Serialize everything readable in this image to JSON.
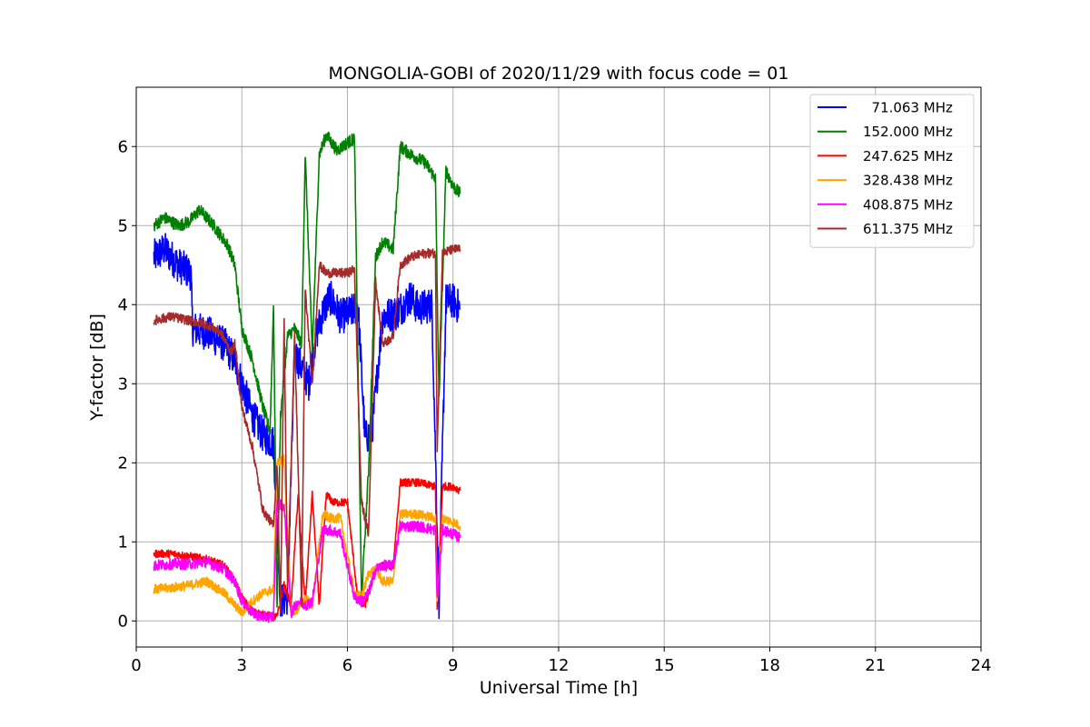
{
  "chart_data": {
    "type": "line",
    "title": "MONGOLIA-GOBI of 2020/11/29 with focus code = 01",
    "xlabel": "Universal Time [h]",
    "ylabel": "Y-factor [dB]",
    "xlim": [
      0,
      24
    ],
    "ylim": [
      -0.33,
      6.75
    ],
    "xticks": [
      0,
      3,
      6,
      9,
      12,
      15,
      18,
      21,
      24
    ],
    "yticks": [
      0,
      1,
      2,
      3,
      4,
      5,
      6
    ],
    "grid": true,
    "legend_position": "top-right",
    "series": [
      {
        "name": "  71.063 MHz",
        "color": "#0000ff",
        "noise": 0.45,
        "x": [
          0.5,
          0.8,
          1.2,
          1.55,
          1.6,
          2.0,
          2.5,
          2.8,
          3.0,
          3.3,
          3.6,
          3.9,
          4.1,
          4.3,
          4.5,
          4.7,
          4.9,
          5.1,
          5.3,
          5.5,
          5.8,
          6.1,
          6.3,
          6.5,
          6.7,
          7.0,
          7.4,
          7.8,
          8.0,
          8.4,
          8.6,
          8.8,
          9.0,
          9.2
        ],
        "y": [
          4.6,
          4.7,
          4.5,
          4.4,
          3.7,
          3.65,
          3.5,
          3.3,
          3.0,
          2.6,
          2.35,
          2.25,
          0.25,
          0.3,
          3.4,
          3.2,
          3.0,
          3.6,
          3.9,
          4.1,
          3.85,
          3.9,
          4.0,
          2.3,
          2.4,
          3.85,
          3.9,
          4.1,
          3.95,
          4.0,
          0.25,
          4.05,
          4.05,
          3.95
        ]
      },
      {
        "name": "152.000 MHz",
        "color": "#008000",
        "noise": 0.16,
        "x": [
          0.5,
          0.8,
          1.2,
          1.5,
          1.8,
          2.2,
          2.6,
          2.8,
          3.0,
          3.3,
          3.6,
          3.8,
          3.9,
          4.0,
          4.1,
          4.3,
          4.5,
          4.7,
          4.8,
          5.0,
          5.2,
          5.4,
          5.7,
          6.0,
          6.2,
          6.4,
          6.6,
          6.8,
          7.0,
          7.3,
          7.5,
          7.8,
          8.2,
          8.5,
          8.6,
          8.8,
          9.0,
          9.2
        ],
        "y": [
          5.0,
          5.1,
          5.0,
          5.05,
          5.2,
          5.0,
          4.75,
          4.5,
          3.7,
          3.3,
          2.7,
          2.4,
          4.0,
          0.2,
          2.6,
          3.6,
          3.7,
          3.5,
          5.9,
          3.4,
          5.9,
          6.15,
          5.95,
          6.05,
          6.1,
          0.3,
          1.9,
          4.6,
          4.8,
          4.7,
          6.0,
          5.9,
          5.8,
          5.6,
          2.8,
          5.7,
          5.5,
          5.4
        ]
      },
      {
        "name": "247.625 MHz",
        "color": "#ff0000",
        "noise": 0.1,
        "x": [
          0.5,
          1.0,
          1.5,
          2.0,
          2.5,
          2.8,
          3.0,
          3.3,
          3.6,
          4.0,
          4.2,
          4.4,
          4.6,
          4.8,
          5.0,
          5.2,
          5.4,
          5.6,
          6.0,
          6.3,
          6.5,
          6.8,
          7.0,
          7.3,
          7.5,
          8.0,
          8.5,
          8.55,
          8.7,
          9.0,
          9.2
        ],
        "y": [
          0.85,
          0.85,
          0.82,
          0.78,
          0.7,
          0.5,
          0.3,
          0.12,
          0.08,
          0.05,
          0.45,
          0.2,
          1.6,
          0.2,
          1.6,
          0.2,
          1.6,
          1.5,
          1.5,
          0.25,
          0.2,
          0.65,
          0.7,
          0.7,
          1.75,
          1.75,
          1.7,
          0.15,
          1.7,
          1.7,
          1.65
        ]
      },
      {
        "name": "328.438 MHz",
        "color": "#ffa500",
        "noise": 0.12,
        "x": [
          0.5,
          1.0,
          1.5,
          2.0,
          2.5,
          2.8,
          3.0,
          3.3,
          3.6,
          3.9,
          4.0,
          4.2,
          4.4,
          4.6,
          4.8,
          5.0,
          5.3,
          5.5,
          5.8,
          6.2,
          6.4,
          6.6,
          6.8,
          7.0,
          7.3,
          7.5,
          8.0,
          8.5,
          8.55,
          8.7,
          9.0,
          9.2
        ],
        "y": [
          0.4,
          0.42,
          0.45,
          0.5,
          0.35,
          0.2,
          0.1,
          0.25,
          0.35,
          0.4,
          2.0,
          2.05,
          0.1,
          0.15,
          0.3,
          0.2,
          1.35,
          1.3,
          1.3,
          0.35,
          0.3,
          0.6,
          0.65,
          0.5,
          0.5,
          1.35,
          1.35,
          1.3,
          0.2,
          1.3,
          1.25,
          1.2
        ]
      },
      {
        "name": "408.875 MHz",
        "color": "#ff00ff",
        "noise": 0.14,
        "x": [
          0.5,
          1.0,
          1.5,
          2.0,
          2.5,
          2.8,
          3.0,
          3.3,
          3.6,
          3.9,
          4.0,
          4.2,
          4.4,
          4.6,
          4.8,
          5.0,
          5.3,
          5.5,
          5.8,
          6.2,
          6.4,
          6.6,
          6.8,
          7.0,
          7.3,
          7.5,
          8.0,
          8.5,
          8.55,
          8.7,
          9.0,
          9.2
        ],
        "y": [
          0.7,
          0.72,
          0.72,
          0.75,
          0.65,
          0.5,
          0.25,
          0.1,
          0.05,
          0.05,
          1.5,
          1.45,
          0.1,
          0.25,
          0.2,
          0.25,
          1.15,
          1.15,
          1.1,
          0.3,
          0.25,
          0.35,
          0.65,
          0.7,
          0.7,
          1.2,
          1.2,
          1.15,
          0.25,
          1.15,
          1.1,
          1.05
        ]
      },
      {
        "name": "611.375 MHz",
        "color": "#a52a2a",
        "noise": 0.12,
        "x": [
          0.5,
          1.0,
          1.5,
          2.0,
          2.4,
          2.7,
          2.8,
          3.0,
          3.3,
          3.6,
          3.9,
          4.0,
          4.1,
          4.2,
          4.3,
          4.5,
          4.7,
          4.8,
          5.0,
          5.2,
          5.4,
          5.7,
          6.0,
          6.2,
          6.4,
          6.6,
          6.8,
          7.0,
          7.3,
          7.5,
          7.8,
          8.2,
          8.5,
          8.55,
          8.7,
          9.0,
          9.2
        ],
        "y": [
          3.8,
          3.85,
          3.8,
          3.75,
          3.65,
          3.4,
          3.5,
          2.7,
          2.2,
          1.4,
          1.2,
          2.0,
          0.1,
          3.8,
          0.4,
          3.6,
          0.2,
          4.2,
          3.0,
          4.5,
          4.4,
          4.4,
          4.4,
          4.45,
          1.5,
          1.1,
          4.3,
          3.5,
          3.6,
          4.5,
          4.6,
          4.65,
          4.65,
          2.2,
          4.65,
          4.7,
          4.7
        ]
      }
    ]
  }
}
